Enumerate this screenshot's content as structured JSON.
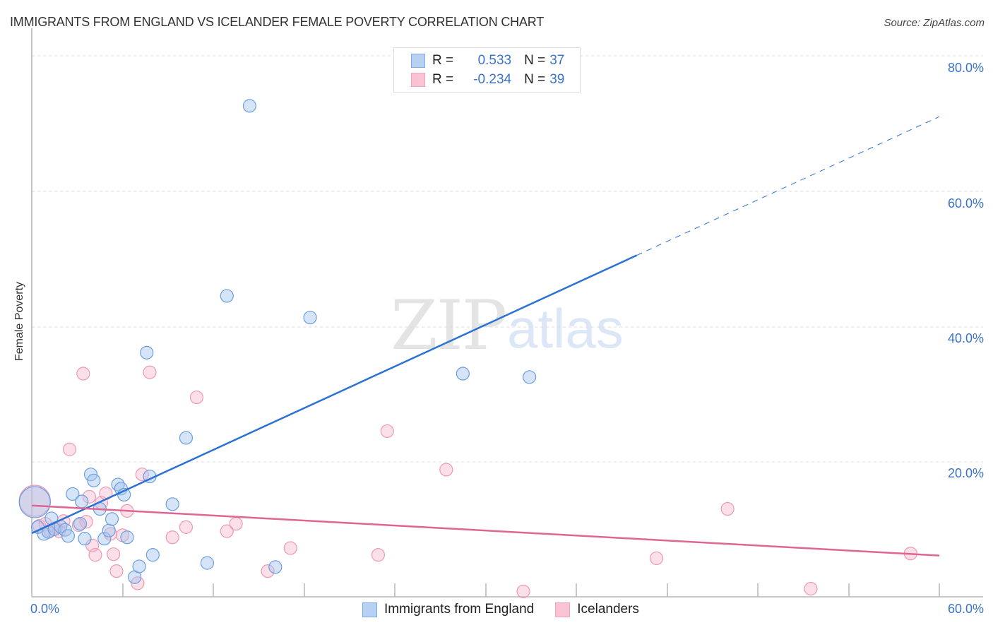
{
  "header": {
    "title": "IMMIGRANTS FROM ENGLAND VS ICELANDER FEMALE POVERTY CORRELATION CHART",
    "source": "Source: ZipAtlas.com"
  },
  "watermark": {
    "zip": "ZIP",
    "atlas": "atlas"
  },
  "axes": {
    "ylabel": "Female Poverty",
    "yticks": [
      "80.0%",
      "60.0%",
      "40.0%",
      "20.0%"
    ],
    "xticks": [
      "0.0%",
      "60.0%"
    ]
  },
  "legend": {
    "series1": {
      "r_label": "R =",
      "r_value": "0.533",
      "n_label": "N =",
      "n_value": "37",
      "color": "#a9c8f0"
    },
    "series2": {
      "r_label": "R =",
      "r_value": "-0.234",
      "n_label": "N =",
      "n_value": "39",
      "color": "#f6b8cb"
    }
  },
  "bottom_legend": {
    "items": [
      {
        "label": "Immigrants from England",
        "color": "#b8d1f3"
      },
      {
        "label": "Icelanders",
        "color": "#f9c3d3"
      }
    ]
  },
  "colors": {
    "blue_point_fill": "rgba(164,196,240,0.45)",
    "blue_point_stroke": "#6b9ee0",
    "pink_point_fill": "rgba(246,178,199,0.4)",
    "pink_point_stroke": "#ec9ab3",
    "blue_line": "#2a72d4",
    "pink_line": "#e06592",
    "tick_label": "#3b73c9"
  },
  "chart_data": {
    "type": "scatter",
    "title": "IMMIGRANTS FROM ENGLAND VS ICELANDER FEMALE POVERTY CORRELATION CHART",
    "xlabel": "",
    "ylabel": "Female Poverty",
    "xlim": [
      0,
      60
    ],
    "ylim": [
      0,
      80
    ],
    "x_tick_labels": [
      "0.0%",
      "60.0%"
    ],
    "y_tick_labels": [
      "20.0%",
      "40.0%",
      "60.0%",
      "80.0%"
    ],
    "grid": true,
    "legend_position": "bottom",
    "series": [
      {
        "name": "Immigrants from England",
        "R": 0.533,
        "N": 37,
        "points": [
          [
            0.2,
            14.0
          ],
          [
            0.4,
            10.3
          ],
          [
            0.8,
            9.3
          ],
          [
            1.1,
            9.6
          ],
          [
            1.3,
            11.6
          ],
          [
            1.5,
            10.0
          ],
          [
            1.9,
            10.4
          ],
          [
            2.2,
            9.9
          ],
          [
            2.4,
            9.0
          ],
          [
            2.7,
            15.2
          ],
          [
            3.2,
            10.8
          ],
          [
            3.3,
            14.1
          ],
          [
            3.5,
            8.6
          ],
          [
            3.9,
            18.1
          ],
          [
            4.1,
            17.2
          ],
          [
            4.5,
            13.0
          ],
          [
            4.8,
            8.6
          ],
          [
            5.1,
            9.8
          ],
          [
            5.3,
            11.5
          ],
          [
            5.7,
            16.6
          ],
          [
            5.9,
            16.0
          ],
          [
            6.1,
            15.1
          ],
          [
            6.3,
            8.8
          ],
          [
            6.8,
            2.9
          ],
          [
            7.1,
            4.5
          ],
          [
            7.6,
            36.1
          ],
          [
            7.8,
            17.8
          ],
          [
            8.0,
            6.2
          ],
          [
            9.3,
            13.7
          ],
          [
            10.2,
            23.5
          ],
          [
            11.6,
            5.0
          ],
          [
            12.9,
            44.5
          ],
          [
            14.4,
            72.6
          ],
          [
            16.1,
            4.4
          ],
          [
            18.4,
            41.3
          ],
          [
            28.5,
            33.0
          ],
          [
            32.9,
            32.5
          ]
        ],
        "trendline": {
          "x": [
            0,
            40,
            60
          ],
          "y": [
            9.4,
            50.5,
            71.0
          ],
          "dashed_from_x": 40
        }
      },
      {
        "name": "Icelanders",
        "R": -0.234,
        "N": 39,
        "points": [
          [
            0.2,
            14.2
          ],
          [
            0.5,
            10.5
          ],
          [
            0.9,
            10.8
          ],
          [
            1.2,
            9.8
          ],
          [
            1.6,
            10.2
          ],
          [
            1.8,
            9.7
          ],
          [
            2.1,
            11.2
          ],
          [
            2.5,
            21.8
          ],
          [
            3.1,
            10.6
          ],
          [
            3.4,
            33.0
          ],
          [
            3.8,
            14.8
          ],
          [
            4.0,
            7.6
          ],
          [
            4.2,
            6.2
          ],
          [
            4.6,
            13.9
          ],
          [
            4.9,
            15.3
          ],
          [
            5.2,
            9.3
          ],
          [
            5.4,
            6.3
          ],
          [
            5.6,
            3.8
          ],
          [
            6.3,
            12.7
          ],
          [
            7.0,
            2.0
          ],
          [
            7.3,
            18.1
          ],
          [
            7.8,
            33.2
          ],
          [
            9.3,
            8.8
          ],
          [
            10.2,
            10.3
          ],
          [
            10.9,
            29.5
          ],
          [
            12.9,
            9.7
          ],
          [
            13.5,
            10.8
          ],
          [
            15.6,
            3.8
          ],
          [
            17.1,
            7.2
          ],
          [
            22.9,
            6.2
          ],
          [
            23.5,
            24.5
          ],
          [
            27.4,
            18.8
          ],
          [
            32.5,
            0.8
          ],
          [
            41.3,
            5.7
          ],
          [
            46.0,
            13.0
          ],
          [
            51.5,
            1.2
          ],
          [
            58.1,
            6.4
          ],
          [
            3.6,
            11.1
          ],
          [
            6.0,
            9.1
          ]
        ],
        "trendline": {
          "x": [
            0,
            60
          ],
          "y": [
            13.5,
            6.1
          ]
        }
      }
    ]
  }
}
